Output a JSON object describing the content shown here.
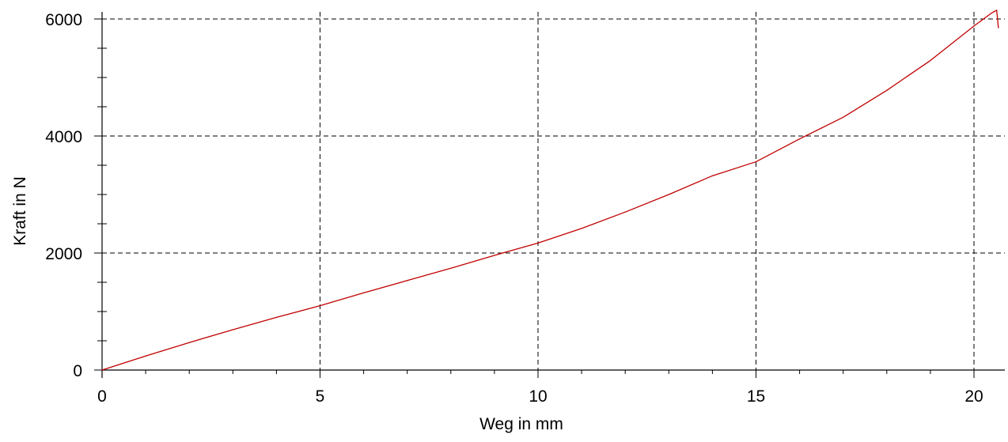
{
  "chart_data": {
    "type": "line",
    "title": "",
    "xlabel": "Weg in mm",
    "ylabel": "Kraft in N",
    "xlim": [
      0,
      20.7
    ],
    "ylim": [
      0,
      6100
    ],
    "x_ticks": [
      0,
      5,
      10,
      15,
      20
    ],
    "x_tick_labels": [
      "0",
      "5",
      "10",
      "15",
      "20"
    ],
    "y_ticks": [
      0,
      2000,
      4000,
      6000
    ],
    "y_tick_labels": [
      "0",
      "2000",
      "4000",
      "6000"
    ],
    "x_minor_step": 1,
    "y_minor_step": 500,
    "grid": true,
    "grid_style": "dashed",
    "legend": "none",
    "series": [
      {
        "color": "#c00000",
        "points": [
          [
            0,
            0
          ],
          [
            1,
            240
          ],
          [
            2,
            470
          ],
          [
            3,
            690
          ],
          [
            4,
            900
          ],
          [
            5,
            1100
          ],
          [
            6,
            1320
          ],
          [
            7,
            1530
          ],
          [
            8,
            1740
          ],
          [
            9,
            1960
          ],
          [
            10,
            2170
          ],
          [
            11,
            2420
          ],
          [
            12,
            2700
          ],
          [
            13,
            3000
          ],
          [
            14,
            3320
          ],
          [
            15,
            3560
          ],
          [
            16,
            3950
          ],
          [
            17,
            4320
          ],
          [
            18,
            4780
          ],
          [
            19,
            5290
          ],
          [
            20,
            5880
          ],
          [
            20.4,
            6100
          ],
          [
            20.52,
            6150
          ],
          [
            20.56,
            5850
          ]
        ]
      }
    ]
  }
}
